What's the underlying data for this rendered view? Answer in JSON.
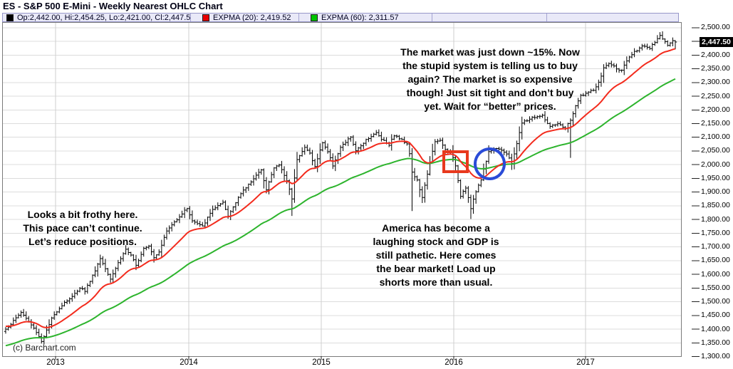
{
  "window": {
    "title": "ES - S&P 500 E-Mini - Weekly Nearest OHLC Chart"
  },
  "legend": {
    "ohlc": {
      "label": "Op:2,442.00, Hi:2,454.25, Lo:2,421.00, Cl:2,447.50",
      "swatch": "black-square",
      "color": "#000000"
    },
    "ema20": {
      "label": "EXPMA (20): 2,419.52",
      "swatch": "red-square",
      "color": "#e80000"
    },
    "ema60": {
      "label": "EXPMA (60): 2,311.57",
      "swatch": "green-square",
      "color": "#00c400"
    }
  },
  "annotations": {
    "top_note": "The market was just down ~15%. Now\nthe stupid system is telling us to buy\nagain? The market is so expensive\nthough! Just sit tight and don’t buy\nyet. Wait for “better” prices.",
    "left_note": "Looks a bit frothy here.\nThis pace can’t continue.\nLet’s reduce positions.",
    "mid_note": "America has become a\nlaughing stock and GDP is\nstill pathetic. Here comes\nthe bear market! Load up\nshorts more than usual."
  },
  "copyright": "(c) Barchart.com",
  "last_price_label": "2,447.50",
  "chart_data": {
    "type": "ohlc",
    "title": "ES - S&P 500 E-Mini - Weekly Nearest OHLC Chart",
    "x_year_labels": [
      "2013",
      "2014",
      "2015",
      "2016",
      "2017"
    ],
    "ylim": [
      1300,
      2500
    ],
    "ytick_step": 50,
    "hidden_ytick": 2450,
    "grid": true,
    "legend_position": "top",
    "weeks_total": 263,
    "last_close": 2447.5,
    "last_open": 2442.0,
    "last_high": 2454.25,
    "last_low": 2421.0,
    "ema20_value": 2419.52,
    "ema60_value": 2311.57,
    "ema20_period": 20,
    "ema60_period": 60,
    "ema20_start": 1412,
    "ema60_start": 1338,
    "close_anchors": [
      [
        0,
        1400
      ],
      [
        3,
        1430
      ],
      [
        6,
        1462
      ],
      [
        9,
        1428
      ],
      [
        12,
        1390
      ],
      [
        14,
        1356
      ],
      [
        16,
        1395
      ],
      [
        18,
        1438
      ],
      [
        20,
        1466
      ],
      [
        23,
        1498
      ],
      [
        26,
        1518
      ],
      [
        29,
        1552
      ],
      [
        31,
        1540
      ],
      [
        34,
        1595
      ],
      [
        37,
        1658
      ],
      [
        39,
        1622
      ],
      [
        41,
        1585
      ],
      [
        44,
        1642
      ],
      [
        47,
        1692
      ],
      [
        49,
        1668
      ],
      [
        51,
        1632
      ],
      [
        54,
        1697
      ],
      [
        56,
        1706
      ],
      [
        58,
        1662
      ],
      [
        60,
        1684
      ],
      [
        63,
        1758
      ],
      [
        67,
        1802
      ],
      [
        71,
        1842
      ],
      [
        73,
        1795
      ],
      [
        77,
        1774
      ],
      [
        81,
        1838
      ],
      [
        85,
        1860
      ],
      [
        87,
        1812
      ],
      [
        91,
        1882
      ],
      [
        95,
        1928
      ],
      [
        98,
        1962
      ],
      [
        100,
        1978
      ],
      [
        102,
        1912
      ],
      [
        105,
        1988
      ],
      [
        107,
        2000
      ],
      [
        110,
        1942
      ],
      [
        112,
        1878
      ],
      [
        114,
        2022
      ],
      [
        117,
        2062
      ],
      [
        119,
        2042
      ],
      [
        121,
        1992
      ],
      [
        124,
        2082
      ],
      [
        126,
        2048
      ],
      [
        128,
        1998
      ],
      [
        131,
        2062
      ],
      [
        135,
        2102
      ],
      [
        137,
        2048
      ],
      [
        141,
        2092
      ],
      [
        145,
        2116
      ],
      [
        147,
        2095
      ],
      [
        150,
        2074
      ],
      [
        152,
        2108
      ],
      [
        155,
        2090
      ],
      [
        157,
        2078
      ],
      [
        158,
        2042
      ],
      [
        159,
        1972
      ],
      [
        161,
        1942
      ],
      [
        163,
        1878
      ],
      [
        166,
        2012
      ],
      [
        168,
        2082
      ],
      [
        170,
        2088
      ],
      [
        172,
        2055
      ],
      [
        174,
        2048
      ],
      [
        176,
        1998
      ],
      [
        178,
        1888
      ],
      [
        180,
        1918
      ],
      [
        182,
        1840
      ],
      [
        184,
        1902
      ],
      [
        186,
        1948
      ],
      [
        189,
        2048
      ],
      [
        192,
        2062
      ],
      [
        194,
        2055
      ],
      [
        196,
        2038
      ],
      [
        198,
        2005
      ],
      [
        200,
        2078
      ],
      [
        202,
        2152
      ],
      [
        206,
        2172
      ],
      [
        210,
        2178
      ],
      [
        213,
        2138
      ],
      [
        216,
        2148
      ],
      [
        219,
        2134
      ],
      [
        221,
        2162
      ],
      [
        223,
        2212
      ],
      [
        225,
        2252
      ],
      [
        228,
        2264
      ],
      [
        230,
        2272
      ],
      [
        232,
        2298
      ],
      [
        234,
        2352
      ],
      [
        236,
        2370
      ],
      [
        238,
        2358
      ],
      [
        241,
        2342
      ],
      [
        243,
        2378
      ],
      [
        245,
        2402
      ],
      [
        247,
        2418
      ],
      [
        249,
        2436
      ],
      [
        252,
        2424
      ],
      [
        254,
        2446
      ],
      [
        256,
        2470
      ],
      [
        258,
        2450
      ],
      [
        259,
        2438
      ],
      [
        261,
        2456
      ],
      [
        262,
        2447.5
      ]
    ],
    "low_wick_overrides": [
      [
        112,
        1813
      ],
      [
        159,
        1831
      ],
      [
        163,
        1866
      ],
      [
        182,
        1802
      ],
      [
        198,
        1981
      ],
      [
        221,
        2025
      ]
    ],
    "colors": {
      "bars": "#000000",
      "ema20": "#f32b1d",
      "ema60": "#2db42d",
      "grid_h": "#dcdcdc",
      "grid_v": "#cfcfcf",
      "border": "#7a7a7a",
      "highlight_bg": "#000000",
      "highlight_text": "#ffffff",
      "red_box": "#e8391d",
      "blue_circle": "#2a4bd7"
    }
  }
}
